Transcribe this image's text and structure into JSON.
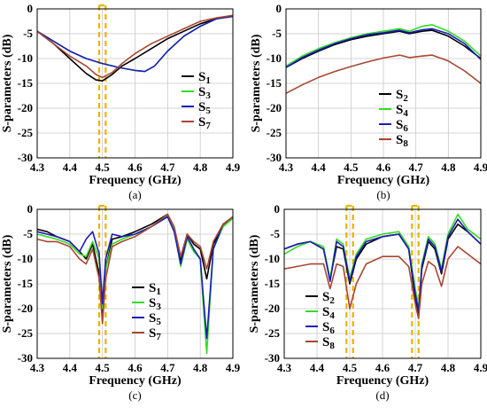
{
  "colors": {
    "black": "#000000",
    "green": "#33dd22",
    "blue": "#1c1cb8",
    "brown": "#a8472f",
    "highlight": "#e8b400"
  },
  "chart_data": [
    {
      "panel_label": "(a)",
      "type": "line",
      "xlabel": "Frequency (GHz)",
      "ylabel": "S-parameters (dB)",
      "xlim": [
        4.3,
        4.9
      ],
      "ylim": [
        -30,
        0
      ],
      "xticks": [
        "4.3",
        "4.4",
        "4.5",
        "4.6",
        "4.7",
        "4.8",
        "4.9"
      ],
      "yticks": [
        "0",
        "-5",
        "-10",
        "-15",
        "-20",
        "-25",
        "-30"
      ],
      "highlights": [
        [
          4.49,
          4.51
        ]
      ],
      "legend_position": "bottom-right",
      "series": [
        {
          "name": "S",
          "sub": "1",
          "color": "black",
          "x": [
            4.3,
            4.35,
            4.4,
            4.45,
            4.48,
            4.5,
            4.53,
            4.56,
            4.6,
            4.65,
            4.7,
            4.75,
            4.8,
            4.85,
            4.9
          ],
          "values": [
            -4.5,
            -7,
            -10,
            -13,
            -14.3,
            -14.5,
            -13.2,
            -11.5,
            -10,
            -8,
            -6,
            -4.5,
            -3,
            -2,
            -1.5
          ]
        },
        {
          "name": "S",
          "sub": "3",
          "color": "green",
          "x": [
            4.3,
            4.35,
            4.4,
            4.45,
            4.5,
            4.55,
            4.6,
            4.63,
            4.66,
            4.7,
            4.75,
            4.8,
            4.85,
            4.9
          ],
          "values": [
            -4.5,
            -6.5,
            -8.5,
            -10,
            -11,
            -11.8,
            -12.4,
            -12.6,
            -11.5,
            -8.5,
            -5.5,
            -3.5,
            -2,
            -1.5
          ]
        },
        {
          "name": "S",
          "sub": "5",
          "color": "blue",
          "x": [
            4.3,
            4.35,
            4.4,
            4.45,
            4.5,
            4.55,
            4.6,
            4.63,
            4.66,
            4.7,
            4.75,
            4.8,
            4.85,
            4.9
          ],
          "values": [
            -4.5,
            -6.5,
            -8.5,
            -10,
            -11,
            -11.8,
            -12.4,
            -12.6,
            -11.5,
            -8.5,
            -5.5,
            -3.5,
            -2,
            -1.5
          ]
        },
        {
          "name": "S",
          "sub": "7",
          "color": "brown",
          "x": [
            4.3,
            4.35,
            4.4,
            4.45,
            4.48,
            4.5,
            4.53,
            4.56,
            4.6,
            4.65,
            4.7,
            4.75,
            4.8,
            4.85,
            4.9
          ],
          "values": [
            -4.5,
            -7,
            -9.5,
            -11.5,
            -13.2,
            -13.8,
            -12.8,
            -11,
            -9,
            -7,
            -5.5,
            -4,
            -2.5,
            -1.8,
            -1.3
          ]
        }
      ]
    },
    {
      "panel_label": "(b)",
      "type": "line",
      "xlabel": "Frequency (GHz)",
      "ylabel": "S-parameters (dB)",
      "xlim": [
        4.3,
        4.9
      ],
      "ylim": [
        -30,
        0
      ],
      "xticks": [
        "4.3",
        "4.4",
        "4.5",
        "4.6",
        "4.7",
        "4.8",
        "4.9"
      ],
      "yticks": [
        "0",
        "-5",
        "-10",
        "-15",
        "-20",
        "-25",
        "-30"
      ],
      "highlights": [],
      "legend_position": "bottom-right",
      "series": [
        {
          "name": "S",
          "sub": "2",
          "color": "black",
          "x": [
            4.3,
            4.35,
            4.4,
            4.45,
            4.5,
            4.55,
            4.6,
            4.65,
            4.68,
            4.72,
            4.75,
            4.8,
            4.85,
            4.9
          ],
          "values": [
            -11.8,
            -10,
            -8.5,
            -7.2,
            -6.2,
            -5.5,
            -5,
            -4.5,
            -5,
            -4.5,
            -4.3,
            -5.5,
            -7.5,
            -10
          ]
        },
        {
          "name": "S",
          "sub": "4",
          "color": "green",
          "x": [
            4.3,
            4.35,
            4.4,
            4.45,
            4.5,
            4.55,
            4.6,
            4.65,
            4.68,
            4.72,
            4.75,
            4.8,
            4.85,
            4.9
          ],
          "values": [
            -11.5,
            -9.5,
            -8,
            -6.8,
            -5.8,
            -5,
            -4.5,
            -4,
            -4.5,
            -3.5,
            -3.2,
            -4.5,
            -6.5,
            -9.5
          ]
        },
        {
          "name": "S",
          "sub": "6",
          "color": "blue",
          "x": [
            4.3,
            4.35,
            4.4,
            4.45,
            4.5,
            4.55,
            4.6,
            4.65,
            4.68,
            4.72,
            4.75,
            4.8,
            4.85,
            4.9
          ],
          "values": [
            -11.8,
            -9.8,
            -8.3,
            -7,
            -6,
            -5.2,
            -4.8,
            -4.3,
            -4.8,
            -4.2,
            -4,
            -5,
            -7,
            -10.2
          ]
        },
        {
          "name": "S",
          "sub": "8",
          "color": "brown",
          "x": [
            4.3,
            4.35,
            4.4,
            4.45,
            4.5,
            4.55,
            4.6,
            4.65,
            4.68,
            4.72,
            4.75,
            4.8,
            4.85,
            4.9
          ],
          "values": [
            -17,
            -15.3,
            -13.8,
            -12.6,
            -11.6,
            -10.7,
            -9.9,
            -9.3,
            -9.8,
            -9.5,
            -9.3,
            -10.5,
            -12.5,
            -15
          ]
        }
      ]
    },
    {
      "panel_label": "(c)",
      "type": "line",
      "xlabel": "Frequency (GHz)",
      "ylabel": "S-parameters (dB)",
      "xlim": [
        4.3,
        4.9
      ],
      "ylim": [
        -30,
        0
      ],
      "xticks": [
        "4.3",
        "4.4",
        "4.5",
        "4.6",
        "4.7",
        "4.8",
        "4.9"
      ],
      "yticks": [
        "0",
        "-5",
        "-10",
        "-15",
        "-20",
        "-25",
        "-30"
      ],
      "highlights": [
        [
          4.49,
          4.51
        ]
      ],
      "legend_position": "bottom-right",
      "series": [
        {
          "name": "S",
          "sub": "1",
          "color": "black",
          "x": [
            4.3,
            4.33,
            4.36,
            4.4,
            4.43,
            4.45,
            4.47,
            4.49,
            4.5,
            4.51,
            4.53,
            4.56,
            4.6,
            4.65,
            4.7,
            4.72,
            4.74,
            4.76,
            4.78,
            4.8,
            4.82,
            4.84,
            4.87,
            4.9
          ],
          "values": [
            -4,
            -4.5,
            -5.5,
            -6.5,
            -8.5,
            -10,
            -7,
            -13,
            -21,
            -12,
            -6,
            -5.5,
            -4.5,
            -3,
            -1,
            -4,
            -10.5,
            -5,
            -7,
            -8,
            -14,
            -7,
            -3.5,
            -1.5
          ]
        },
        {
          "name": "S",
          "sub": "3",
          "color": "green",
          "x": [
            4.3,
            4.33,
            4.36,
            4.4,
            4.43,
            4.45,
            4.47,
            4.49,
            4.5,
            4.51,
            4.53,
            4.56,
            4.6,
            4.65,
            4.7,
            4.72,
            4.74,
            4.76,
            4.78,
            4.8,
            4.81,
            4.82,
            4.84,
            4.87,
            4.9
          ],
          "values": [
            -5,
            -5.5,
            -6,
            -7,
            -9,
            -9.5,
            -6.5,
            -10,
            -20,
            -12,
            -7,
            -6,
            -5,
            -3.5,
            -1.2,
            -4,
            -11.5,
            -6,
            -8.5,
            -10,
            -20,
            -29,
            -8,
            -3.5,
            -1.8
          ]
        },
        {
          "name": "S",
          "sub": "5",
          "color": "blue",
          "x": [
            4.3,
            4.33,
            4.36,
            4.4,
            4.43,
            4.45,
            4.47,
            4.49,
            4.5,
            4.51,
            4.53,
            4.56,
            4.6,
            4.65,
            4.7,
            4.72,
            4.74,
            4.76,
            4.78,
            4.8,
            4.81,
            4.82,
            4.84,
            4.87,
            4.9
          ],
          "values": [
            -4.5,
            -5,
            -5.5,
            -6.5,
            -8.5,
            -6,
            -4.5,
            -9,
            -19,
            -10,
            -5,
            -5.5,
            -5,
            -3.5,
            -1.5,
            -4.5,
            -11,
            -5.5,
            -8,
            -10,
            -18,
            -26,
            -8,
            -3,
            -1.5
          ]
        },
        {
          "name": "S",
          "sub": "7",
          "color": "brown",
          "x": [
            4.3,
            4.33,
            4.36,
            4.4,
            4.43,
            4.45,
            4.47,
            4.49,
            4.5,
            4.51,
            4.53,
            4.56,
            4.6,
            4.65,
            4.7,
            4.72,
            4.74,
            4.76,
            4.78,
            4.8,
            4.82,
            4.84,
            4.87,
            4.9
          ],
          "values": [
            -6,
            -6.5,
            -6.5,
            -7.5,
            -10,
            -11,
            -8,
            -14,
            -23,
            -14,
            -7.5,
            -6.5,
            -5.5,
            -3.5,
            -1,
            -3.5,
            -9.5,
            -5,
            -6.5,
            -7.5,
            -12,
            -6.5,
            -3,
            -1.5
          ]
        }
      ]
    },
    {
      "panel_label": "(d)",
      "type": "line",
      "xlabel": "Frequency (GHz)",
      "ylabel": "S-parameters (dB)",
      "xlim": [
        4.3,
        4.9
      ],
      "ylim": [
        -30,
        0
      ],
      "xticks": [
        "4.3",
        "4.4",
        "4.5",
        "4.6",
        "4.7",
        "4.8",
        "4.9"
      ],
      "yticks": [
        "0",
        "-5",
        "-10",
        "-15",
        "-20",
        "-25",
        "-30"
      ],
      "highlights": [
        [
          4.49,
          4.51
        ],
        [
          4.69,
          4.71
        ]
      ],
      "legend_position": "bottom-right",
      "series": [
        {
          "name": "S",
          "sub": "2",
          "color": "black",
          "x": [
            4.3,
            4.34,
            4.38,
            4.42,
            4.44,
            4.46,
            4.48,
            4.5,
            4.52,
            4.55,
            4.6,
            4.65,
            4.68,
            4.7,
            4.71,
            4.72,
            4.74,
            4.76,
            4.78,
            4.8,
            4.83,
            4.86,
            4.9
          ],
          "values": [
            -8,
            -7,
            -6.5,
            -8,
            -14,
            -7.5,
            -8,
            -15,
            -10,
            -7,
            -5.5,
            -5,
            -8,
            -18,
            -21,
            -12,
            -6.5,
            -8,
            -13,
            -6,
            -3,
            -4.5,
            -7
          ]
        },
        {
          "name": "S",
          "sub": "4",
          "color": "green",
          "x": [
            4.3,
            4.34,
            4.38,
            4.42,
            4.44,
            4.46,
            4.48,
            4.5,
            4.52,
            4.55,
            4.6,
            4.65,
            4.68,
            4.7,
            4.71,
            4.72,
            4.74,
            4.76,
            4.78,
            4.8,
            4.83,
            4.86,
            4.9
          ],
          "values": [
            -9,
            -7.5,
            -6.5,
            -7.5,
            -14,
            -6,
            -7,
            -14,
            -9,
            -6,
            -5,
            -4.5,
            -7.5,
            -16,
            -20,
            -11,
            -5.5,
            -7,
            -12,
            -5,
            -1,
            -4,
            -6
          ]
        },
        {
          "name": "S",
          "sub": "6",
          "color": "blue",
          "x": [
            4.3,
            4.34,
            4.38,
            4.42,
            4.44,
            4.46,
            4.48,
            4.5,
            4.52,
            4.55,
            4.6,
            4.65,
            4.68,
            4.7,
            4.71,
            4.72,
            4.74,
            4.76,
            4.78,
            4.8,
            4.83,
            4.86,
            4.9
          ],
          "values": [
            -8,
            -7,
            -6.5,
            -8,
            -14.5,
            -6.5,
            -7.5,
            -14.5,
            -9.5,
            -6.5,
            -5.5,
            -5,
            -8,
            -17,
            -20.5,
            -11.5,
            -6,
            -7.5,
            -12.5,
            -5.5,
            -2,
            -4.5,
            -7
          ]
        },
        {
          "name": "S",
          "sub": "8",
          "color": "brown",
          "x": [
            4.3,
            4.34,
            4.38,
            4.42,
            4.44,
            4.46,
            4.48,
            4.5,
            4.52,
            4.55,
            4.6,
            4.65,
            4.68,
            4.7,
            4.71,
            4.72,
            4.74,
            4.76,
            4.78,
            4.8,
            4.83,
            4.86,
            4.9
          ],
          "values": [
            -12,
            -11.5,
            -11,
            -11,
            -16,
            -11,
            -11.5,
            -20,
            -15,
            -11,
            -9.5,
            -9.5,
            -11.5,
            -19,
            -22,
            -15,
            -10.5,
            -11.5,
            -15.5,
            -10,
            -7.5,
            -9,
            -11
          ]
        }
      ]
    }
  ]
}
